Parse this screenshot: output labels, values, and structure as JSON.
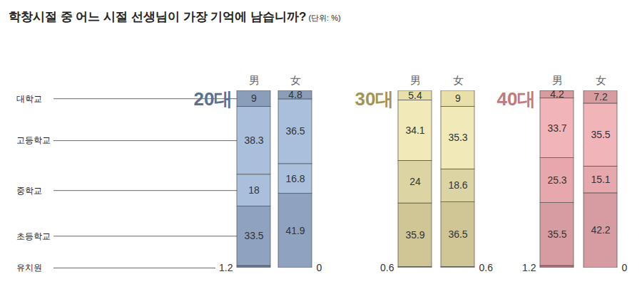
{
  "chart_data": {
    "type": "bar",
    "stacked": true,
    "data_labels": true,
    "tick_labels": false,
    "title": "학창시절 중 어느 시절 선생님이 가장 기억에 남습니까?",
    "subtitle": "(단위: %)",
    "groups": [
      {
        "name": "20대",
        "color": "#5b7190"
      },
      {
        "name": "30대",
        "color": "#a39455"
      },
      {
        "name": "40대",
        "color": "#c27a7f"
      }
    ],
    "categories": [
      "男",
      "女",
      "男",
      "女",
      "男",
      "女"
    ],
    "series": [
      {
        "name": "유치원",
        "values": [
          1.2,
          0,
          0.6,
          0.6,
          1.2,
          0
        ],
        "colors": [
          "#6d7f99",
          "#6d7f99",
          "#a89d6e",
          "#a89d6e",
          "#b97b80",
          "#b97b80"
        ]
      },
      {
        "name": "초등학교",
        "values": [
          33.5,
          41.9,
          35.9,
          36.5,
          35.5,
          42.2
        ],
        "colors": [
          "#8fa3c1",
          "#8fa3c1",
          "#cfc595",
          "#cfc595",
          "#d69ca1",
          "#d69ca1"
        ]
      },
      {
        "name": "중학교",
        "values": [
          18,
          16.8,
          24,
          18.6,
          25.3,
          15.1
        ],
        "colors": [
          "#a9bfdc",
          "#a9bfdc",
          "#ddd4a3",
          "#ddd4a3",
          "#e6a8ac",
          "#e6a8ac"
        ]
      },
      {
        "name": "고등학교",
        "values": [
          38.3,
          36.5,
          34.1,
          35.3,
          33.7,
          35.5
        ],
        "colors": [
          "#a9bfdc",
          "#a9bfdc",
          "#f2e9b8",
          "#f2e9b8",
          "#f1b4b8",
          "#f1b4b8"
        ]
      },
      {
        "name": "대학교",
        "values": [
          9,
          4.8,
          5.4,
          9,
          4.2,
          7.2
        ],
        "colors": [
          "#8b9eb9",
          "#8b9eb9",
          "#e9dfa8",
          "#e9dfa8",
          "#d89ca0",
          "#d89ca0"
        ]
      }
    ]
  }
}
